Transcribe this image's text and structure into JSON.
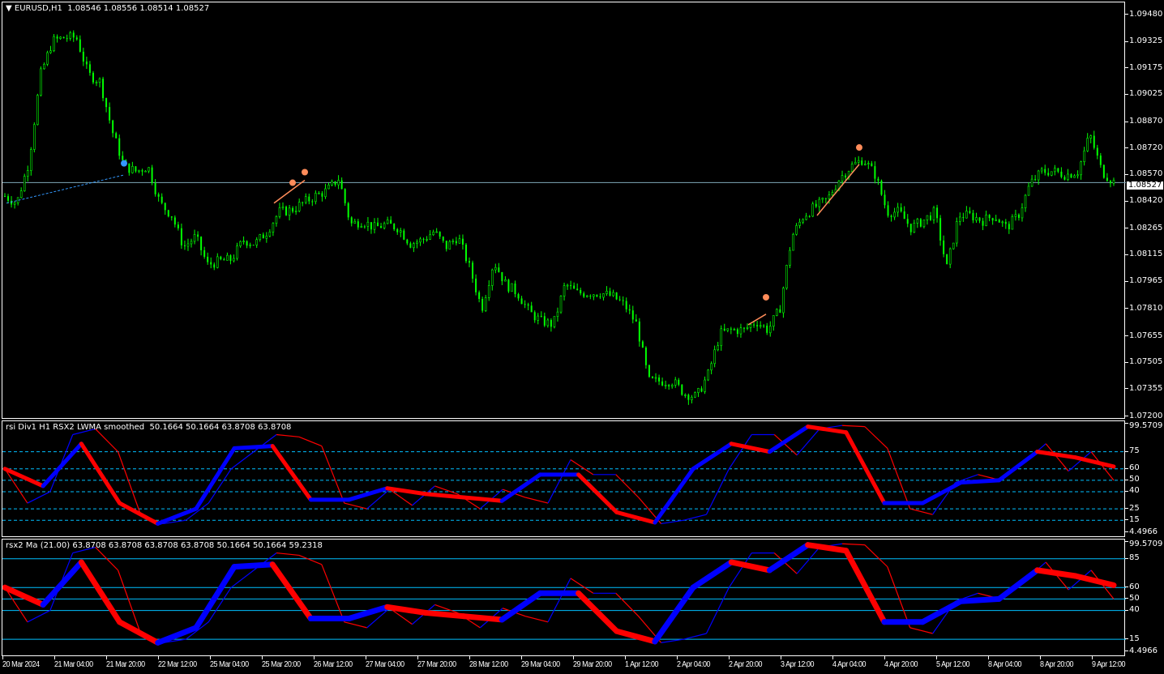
{
  "header": {
    "symbol": "EURUSD,H1",
    "ohlc": "1.08546 1.08556 1.08514 1.08527"
  },
  "price_axis": {
    "labels": [
      "1.09480",
      "1.09325",
      "1.09175",
      "1.09025",
      "1.08870",
      "1.08720",
      "1.08570",
      "1.08420",
      "1.08265",
      "1.08115",
      "1.07965",
      "1.07810",
      "1.07655",
      "1.07505",
      "1.07355",
      "1.07200"
    ],
    "current": "1.08527",
    "range": [
      1.072,
      1.0948
    ]
  },
  "time_axis": [
    "20 Mar 2024",
    "21 Mar 04:00",
    "21 Mar 20:00",
    "22 Mar 12:00",
    "25 Mar 04:00",
    "25 Mar 20:00",
    "26 Mar 12:00",
    "27 Mar 04:00",
    "27 Mar 20:00",
    "28 Mar 12:00",
    "29 Mar 04:00",
    "29 Mar 20:00",
    "1 Apr 12:00",
    "2 Apr 04:00",
    "2 Apr 20:00",
    "3 Apr 12:00",
    "4 Apr 04:00",
    "4 Apr 20:00",
    "5 Apr 12:00",
    "8 Apr 04:00",
    "8 Apr 20:00",
    "9 Apr 12:00"
  ],
  "colors": {
    "bull": "#00ff00",
    "up": "#0000ff",
    "down": "#ff0000",
    "level": "#00bfff",
    "marker": "#ff8c5a"
  },
  "chart_data": [
    {
      "type": "line",
      "title": "EURUSD,H1",
      "ylim": [
        1.072,
        1.0948
      ],
      "close": [
        1.0845,
        1.0841,
        1.0864,
        1.0914,
        1.0933,
        1.0935,
        1.0935,
        1.0914,
        1.091,
        1.0882,
        1.0862,
        1.0859,
        1.0862,
        1.0841,
        1.0834,
        1.0816,
        1.0822,
        1.0806,
        1.0808,
        1.0809,
        1.082,
        1.0818,
        1.0825,
        1.0836,
        1.0837,
        1.0841,
        1.0845,
        1.0848,
        1.0855,
        1.0829,
        1.0831,
        1.0827,
        1.0829,
        1.0827,
        1.0818,
        1.082,
        1.0825,
        1.0816,
        1.0822,
        1.0804,
        1.0781,
        1.0808,
        1.0795,
        1.079,
        1.0779,
        1.0774,
        1.0772,
        1.0795,
        1.079,
        1.079,
        1.079,
        1.0788,
        1.0783,
        1.0772,
        1.074,
        1.074,
        1.074,
        1.0733,
        1.0731,
        1.0744,
        1.0767,
        1.0769,
        1.0769,
        1.0774,
        1.0769,
        1.0781,
        1.0822,
        1.0834,
        1.0839,
        1.0843,
        1.0855,
        1.0862,
        1.0866,
        1.0857,
        1.0836,
        1.0836,
        1.0827,
        1.0831,
        1.0836,
        1.0804,
        1.0834,
        1.0834,
        1.0831,
        1.0834,
        1.0827,
        1.0834,
        1.0852,
        1.0859,
        1.0859,
        1.0857,
        1.0859,
        1.088,
        1.0859,
        1.0853
      ]
    },
    {
      "type": "line",
      "title": "rsi Div1 H1 RSX2 LWMA smoothed",
      "values_text": "50.1664 50.1664 63.8708 63.8708",
      "ylim": [
        4.4966,
        99.5709
      ],
      "levels": [
        75,
        60,
        50,
        40,
        25,
        15
      ],
      "level_labels": [
        "99.5709",
        "75",
        "60",
        "50",
        "40",
        "25",
        "15",
        "4.4966"
      ],
      "smoothed": [
        60,
        45,
        82,
        30,
        12,
        25,
        78,
        80,
        33,
        33,
        43,
        38,
        35,
        32,
        55,
        55,
        22,
        13,
        60,
        82,
        75,
        97,
        92,
        30,
        30,
        48,
        50,
        75,
        70,
        62
      ],
      "rsx": [
        60,
        30,
        40,
        90,
        95,
        75,
        20,
        12,
        15,
        30,
        60,
        75,
        90,
        88,
        80,
        30,
        25,
        42,
        28,
        45,
        38,
        25,
        42,
        35,
        30,
        68,
        55,
        55,
        35,
        12,
        15,
        20,
        60,
        90,
        90,
        72,
        95,
        98,
        97,
        78,
        25,
        20,
        48,
        55,
        50,
        65,
        82,
        58,
        75,
        50
      ]
    },
    {
      "type": "line",
      "title": "rsx2 Ma (21.00)",
      "values_text": "63.8708 63.8708 63.8708 63.8708 50.1664 50.1664 59.2318",
      "ylim": [
        4.4966,
        99.5709
      ],
      "levels": [
        85,
        60,
        50,
        40,
        15
      ],
      "level_labels": [
        "99.5709",
        "85",
        "60",
        "50",
        "40",
        "15",
        "4.4966"
      ]
    }
  ]
}
